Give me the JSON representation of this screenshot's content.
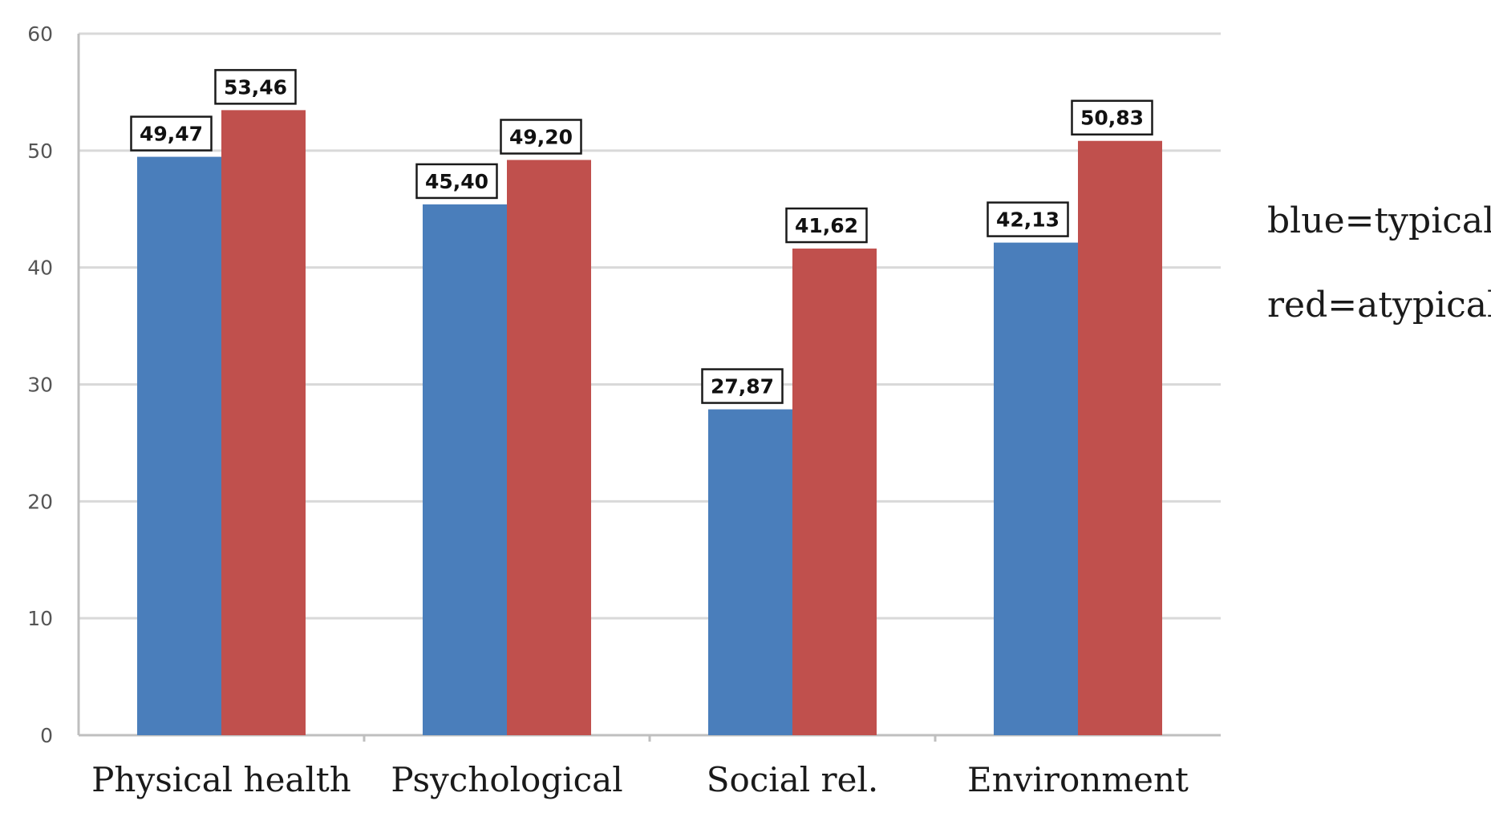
{
  "chart_data": {
    "type": "bar",
    "categories": [
      "Physical health",
      "Psychological",
      "Social rel.",
      "Environment"
    ],
    "series": [
      {
        "values": [
          49.47,
          45.4,
          27.87,
          42.13
        ],
        "color": "#4a7ebb",
        "labels": [
          "49,47",
          "45,40",
          "27,87",
          "42,13"
        ]
      },
      {
        "values": [
          53.46,
          49.2,
          41.62,
          50.83
        ],
        "color": "#c0504d",
        "labels": [
          "53,46",
          "49,20",
          "41,62",
          "50,83"
        ]
      }
    ],
    "y_ticks": [
      "0",
      "10",
      "20",
      "30",
      "40",
      "50",
      "60"
    ],
    "ylim": [
      0,
      60
    ],
    "grid": true,
    "legend_notes": [
      "blue=typical",
      "red=atypical"
    ],
    "legend_placement": "right"
  }
}
